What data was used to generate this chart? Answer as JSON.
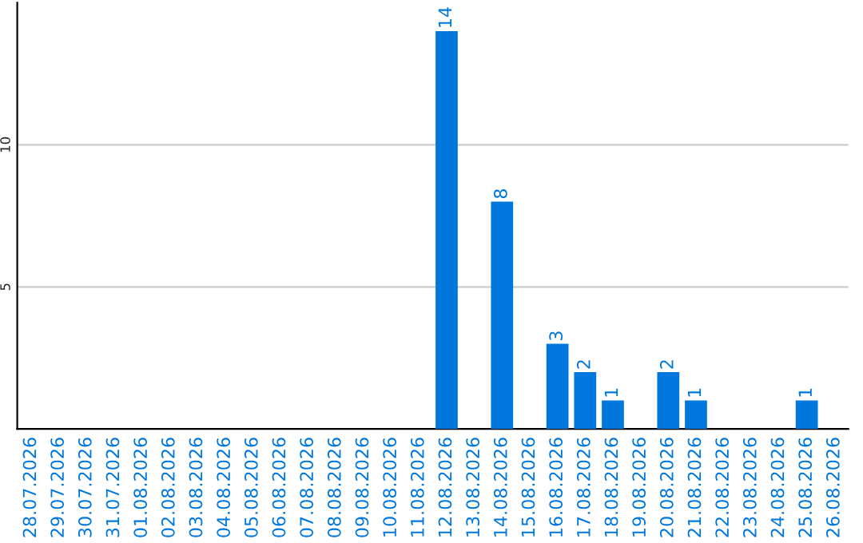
{
  "chart_data": {
    "type": "bar",
    "categories": [
      "28.07.2026",
      "29.07.2026",
      "30.07.2026",
      "31.07.2026",
      "01.08.2026",
      "02.08.2026",
      "03.08.2026",
      "04.08.2026",
      "05.08.2026",
      "06.08.2026",
      "07.08.2026",
      "08.08.2026",
      "09.08.2026",
      "10.08.2026",
      "11.08.2026",
      "12.08.2026",
      "13.08.2026",
      "14.08.2026",
      "15.08.2026",
      "16.08.2026",
      "17.08.2026",
      "18.08.2026",
      "19.08.2026",
      "20.08.2026",
      "21.08.2026",
      "22.08.2026",
      "23.08.2026",
      "24.08.2026",
      "25.08.2026",
      "26.08.2026"
    ],
    "values": [
      0,
      0,
      0,
      0,
      0,
      0,
      0,
      0,
      0,
      0,
      0,
      0,
      0,
      0,
      0,
      14,
      0,
      8,
      0,
      3,
      2,
      1,
      0,
      2,
      1,
      0,
      0,
      0,
      1,
      0
    ],
    "value_labels": [
      null,
      null,
      null,
      null,
      null,
      null,
      null,
      null,
      null,
      null,
      null,
      null,
      null,
      null,
      null,
      "14",
      null,
      "8",
      null,
      "3",
      "2",
      "1",
      null,
      "2",
      "1",
      null,
      null,
      null,
      "1",
      null
    ],
    "color": "#0077dd",
    "ylim": [
      0,
      15
    ],
    "yticks": [
      5,
      10
    ],
    "grid": "y"
  }
}
